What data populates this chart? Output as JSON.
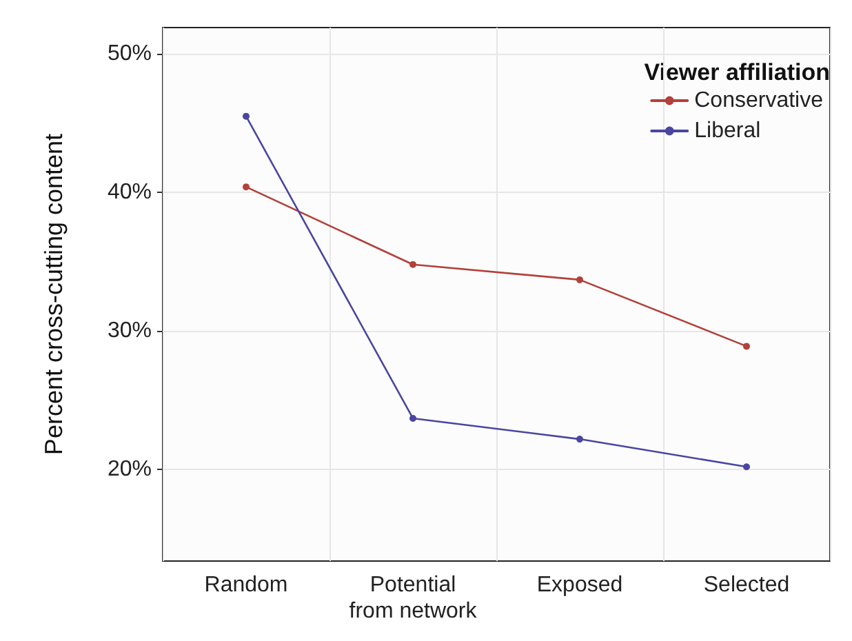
{
  "chart_data": {
    "type": "line",
    "ylabel": "Percent cross-cutting content",
    "legend_title": "Viewer affiliation",
    "categories": [
      "Random",
      "Potential\nfrom network",
      "Exposed",
      "Selected"
    ],
    "series": [
      {
        "name": "Conservative",
        "color": "#b2413a",
        "values": [
          40.4,
          34.8,
          33.7,
          28.9
        ]
      },
      {
        "name": "Liberal",
        "color": "#4a46a0",
        "values": [
          45.5,
          23.7,
          22.2,
          20.2
        ]
      }
    ],
    "ylim": [
      13.4,
      51.9
    ],
    "yticks": [
      {
        "value": 20,
        "label": "20%"
      },
      {
        "value": 30,
        "label": "30%"
      },
      {
        "value": 40,
        "label": "40%"
      },
      {
        "value": 50,
        "label": "50%"
      }
    ],
    "grid": true,
    "legend": "top right",
    "marker": "circle",
    "line_style": "solid"
  }
}
